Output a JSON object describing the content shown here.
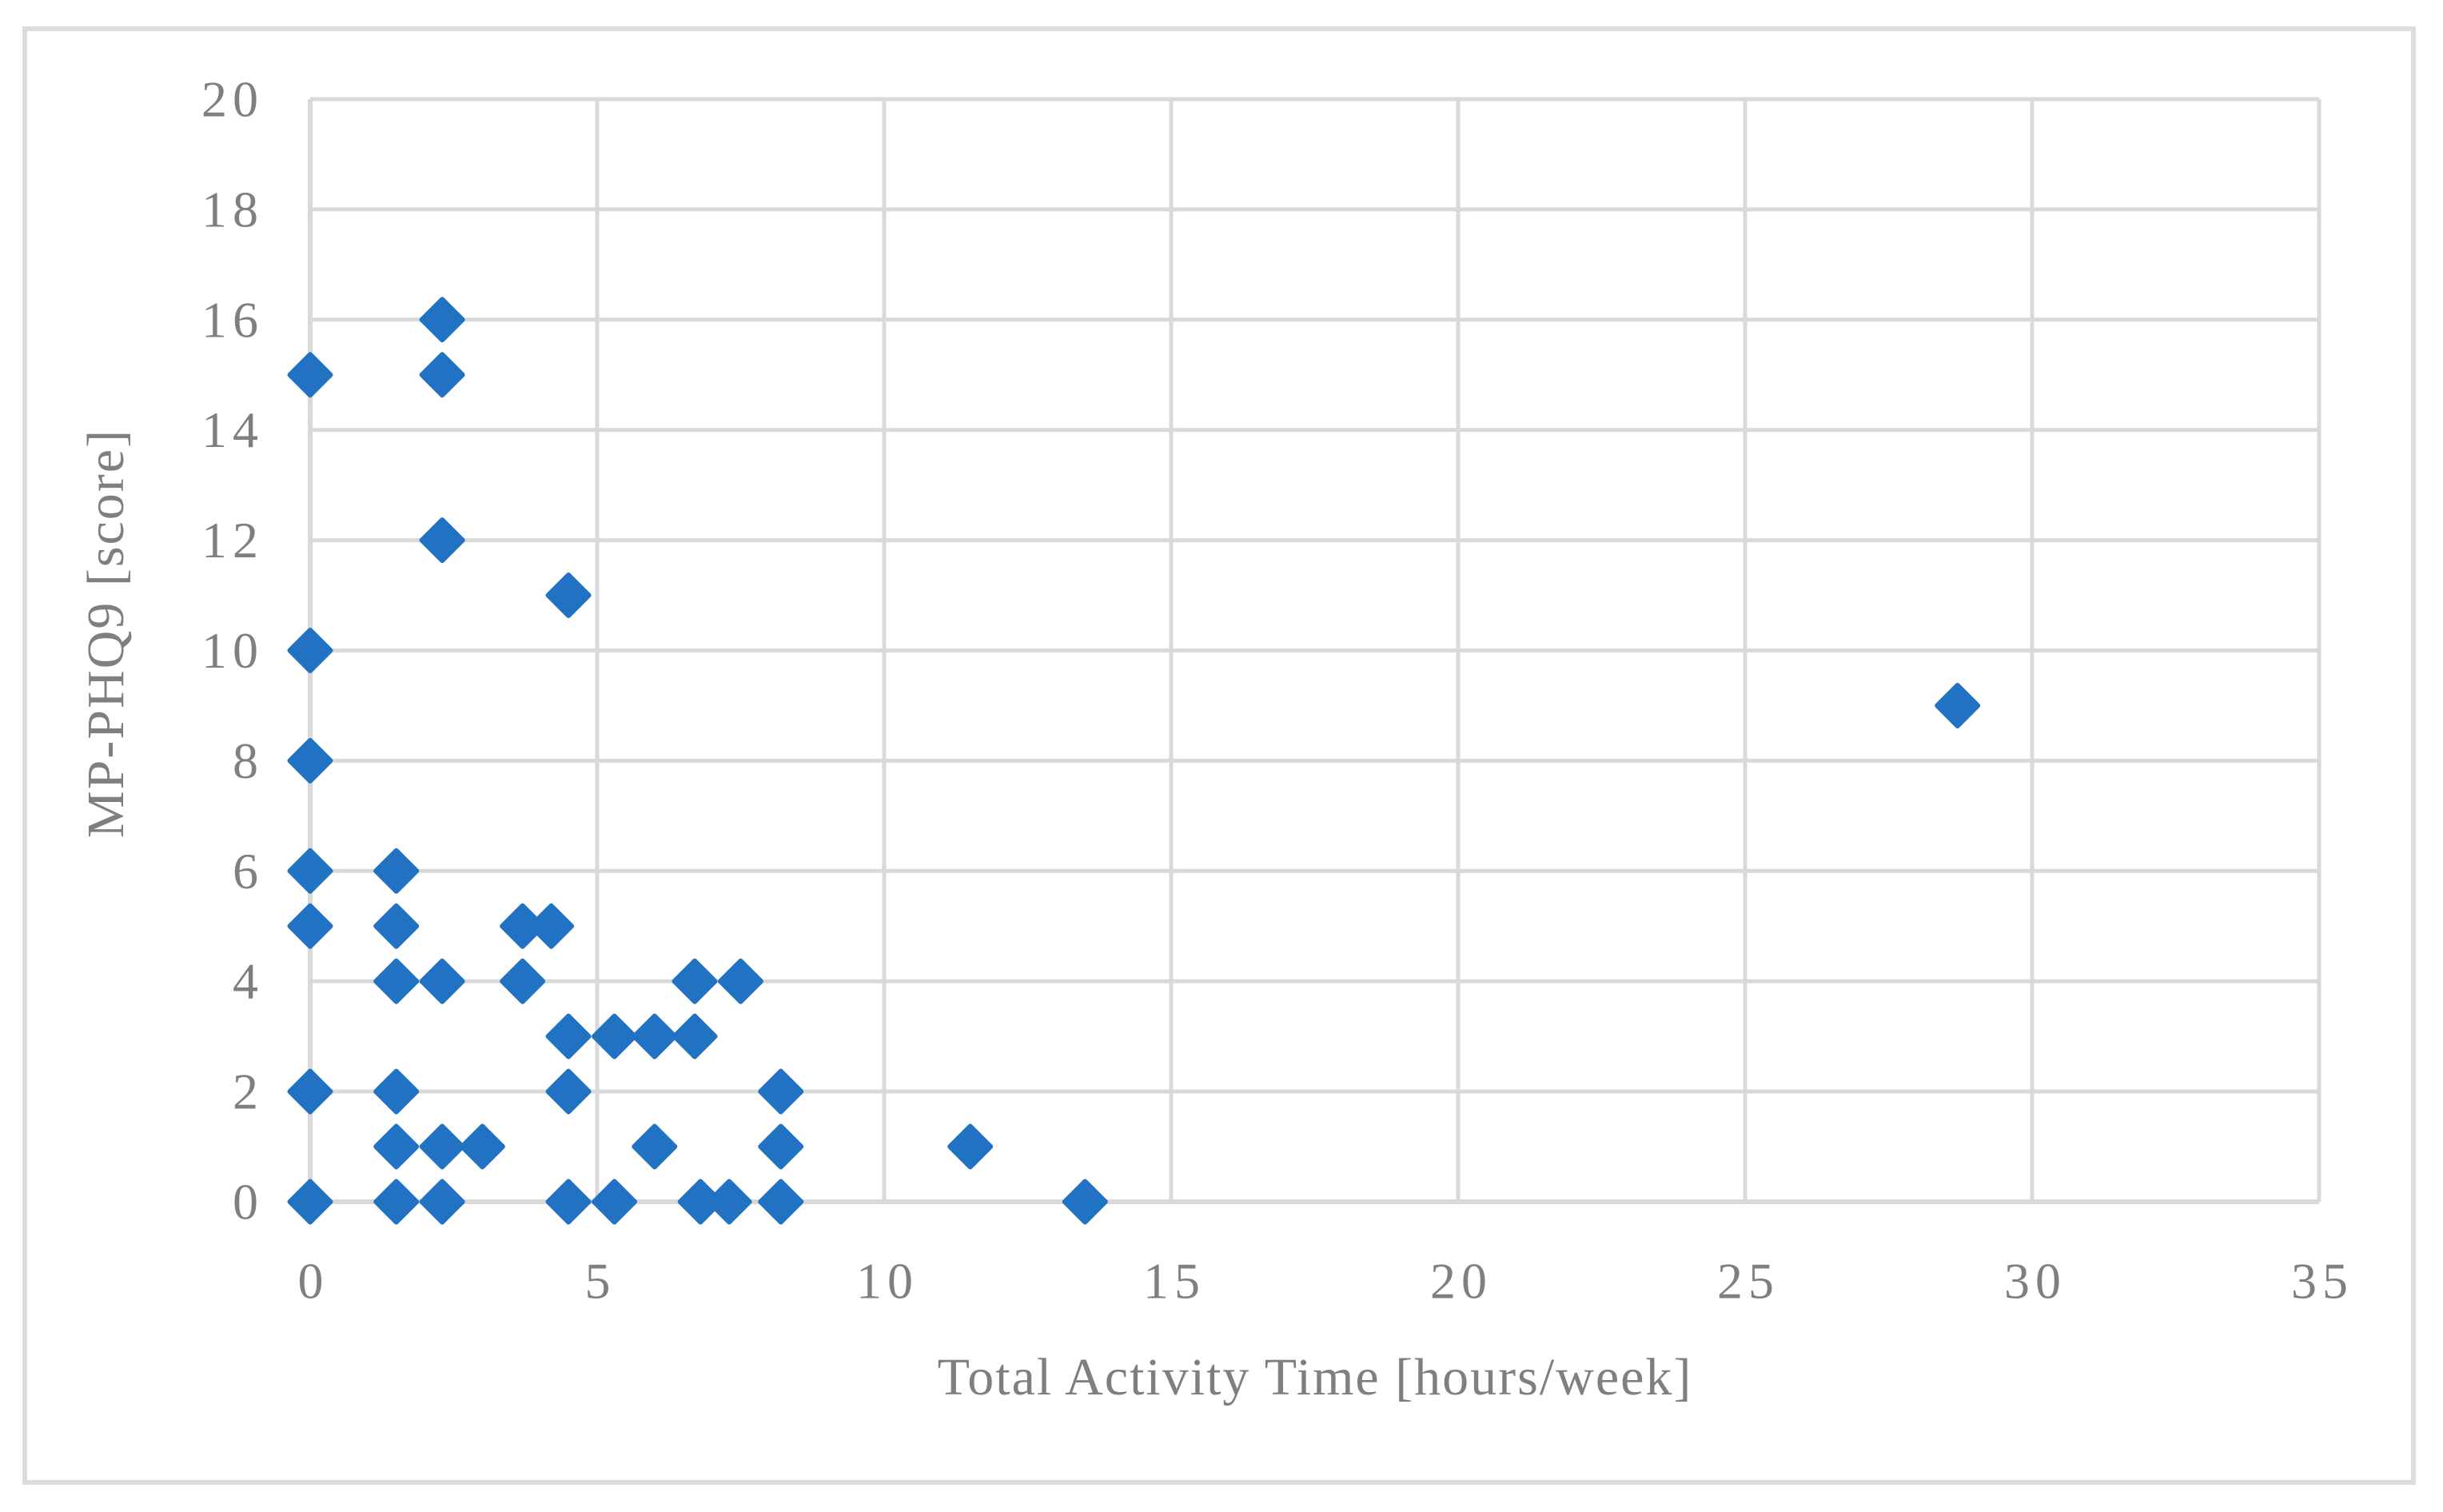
{
  "figure": {
    "background_color": "#FFFFFF",
    "border_color": "#DCDCDC"
  },
  "chart_data": {
    "type": "scatter",
    "title": "",
    "xlabel": "Total Activity Time [hours/week]",
    "ylabel": "MP-PHQ9 [score]",
    "xlim": [
      0,
      35
    ],
    "ylim": [
      0,
      20
    ],
    "x_ticks": [
      0,
      5,
      10,
      15,
      20,
      25,
      30,
      35
    ],
    "y_ticks": [
      0,
      2,
      4,
      6,
      8,
      10,
      12,
      14,
      16,
      18,
      20
    ],
    "grid": true,
    "legend_position": "none",
    "marker": {
      "shape": "diamond",
      "color": "#2272C4",
      "size": 57
    },
    "grid_color": "#D9D9D9",
    "axis_color": "#D9D9D9",
    "tick_label_color": "#7F7F7F",
    "points": [
      [
        0,
        15
      ],
      [
        2.3,
        16
      ],
      [
        2.3,
        15
      ],
      [
        2.3,
        12
      ],
      [
        4.5,
        11
      ],
      [
        0,
        10
      ],
      [
        0,
        8
      ],
      [
        28.7,
        9
      ],
      [
        0,
        6
      ],
      [
        1.5,
        6
      ],
      [
        0,
        5
      ],
      [
        1.5,
        5
      ],
      [
        3.7,
        5
      ],
      [
        4.2,
        5
      ],
      [
        1.5,
        4
      ],
      [
        2.3,
        4
      ],
      [
        3.7,
        4
      ],
      [
        6.7,
        4
      ],
      [
        7.5,
        4
      ],
      [
        4.5,
        3
      ],
      [
        5.3,
        3
      ],
      [
        6.0,
        3
      ],
      [
        6.7,
        3
      ],
      [
        0,
        2
      ],
      [
        1.5,
        2
      ],
      [
        4.5,
        2
      ],
      [
        8.2,
        2
      ],
      [
        1.5,
        1
      ],
      [
        2.3,
        1
      ],
      [
        3.0,
        1
      ],
      [
        6.0,
        1
      ],
      [
        8.2,
        1
      ],
      [
        11.5,
        1
      ],
      [
        0,
        0
      ],
      [
        1.5,
        0
      ],
      [
        2.3,
        0
      ],
      [
        4.5,
        0
      ],
      [
        5.3,
        0
      ],
      [
        6.8,
        0
      ],
      [
        7.3,
        0
      ],
      [
        8.2,
        0
      ],
      [
        13.5,
        0
      ]
    ]
  }
}
